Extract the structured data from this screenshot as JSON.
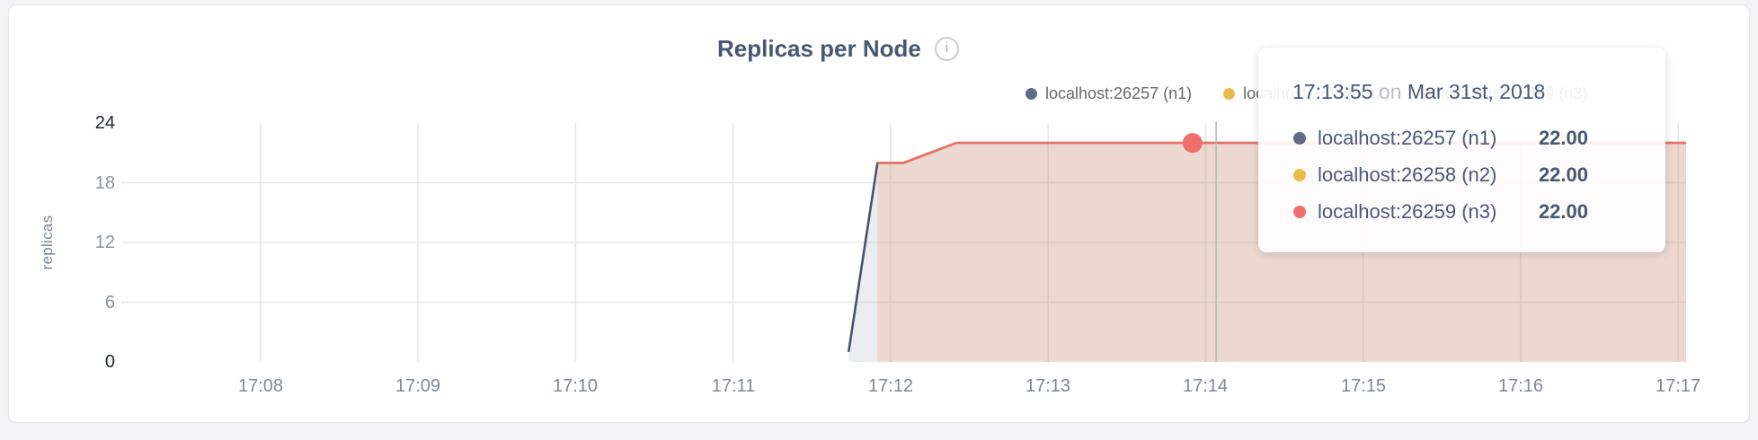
{
  "header": {
    "title": "Replicas per Node",
    "info_glyph": "i"
  },
  "legend": {
    "items": [
      {
        "label": "localhost:26257 (n1)",
        "color": "#5f6c87"
      },
      {
        "label": "localhost:26258 (n2)",
        "color": "#eabd4b"
      },
      {
        "label": "localhost:26259 (n3)",
        "color": "#ee6f6b"
      }
    ]
  },
  "tooltip": {
    "time": "17:13:55",
    "preposition": "on",
    "date": "Mar 31st, 2018",
    "rows": [
      {
        "label": "localhost:26257 (n1)",
        "value": "22.00",
        "color": "#5f6c87"
      },
      {
        "label": "localhost:26258 (n2)",
        "value": "22.00",
        "color": "#eabd4b"
      },
      {
        "label": "localhost:26259 (n3)",
        "value": "22.00",
        "color": "#ee6f6b"
      }
    ]
  },
  "chart_data": {
    "type": "area",
    "title": "Replicas per Node",
    "xlabel": "",
    "ylabel": "replicas",
    "ylim": [
      0,
      24
    ],
    "y_ticks": [
      0,
      6,
      12,
      18,
      24
    ],
    "x_ticks": [
      "17:08",
      "17:09",
      "17:10",
      "17:11",
      "17:12",
      "17:13",
      "17:14",
      "17:15",
      "17:16",
      "17:17"
    ],
    "x_domain": [
      "17:07:07",
      "17:17:03"
    ],
    "grid": true,
    "legend_position": "top-right",
    "series": [
      {
        "name": "localhost:26257 (n1)",
        "color": "#5f6c87",
        "line_color": "#47536e",
        "points": [
          [
            "17:11:44",
            1
          ],
          [
            "17:11:55",
            20
          ],
          [
            "17:12:05",
            20
          ],
          [
            "17:12:25",
            22
          ],
          [
            "17:17:03",
            22
          ]
        ]
      },
      {
        "name": "localhost:26258 (n2)",
        "color": "#eabd4b",
        "line_color": "#eabd4b",
        "points": [
          [
            "17:11:55",
            20
          ],
          [
            "17:12:05",
            20
          ],
          [
            "17:12:25",
            22
          ],
          [
            "17:17:03",
            22
          ]
        ]
      },
      {
        "name": "localhost:26259 (n3)",
        "color": "#ee6f6b",
        "line_color": "#e9706b",
        "points": [
          [
            "17:11:55",
            20
          ],
          [
            "17:12:05",
            20
          ],
          [
            "17:12:25",
            22
          ],
          [
            "17:17:03",
            22
          ]
        ]
      }
    ],
    "hover": {
      "time": "17:13:55",
      "guideline_time": "17:14:04",
      "point_series": 2,
      "point_value": 22
    },
    "colors": {
      "grid": "#e7e7e7",
      "guideline": "#b9babd",
      "axis_tick": "#8a93a3",
      "axis_tick_major": "#1e2637",
      "x_tick": "#7d8795"
    }
  }
}
